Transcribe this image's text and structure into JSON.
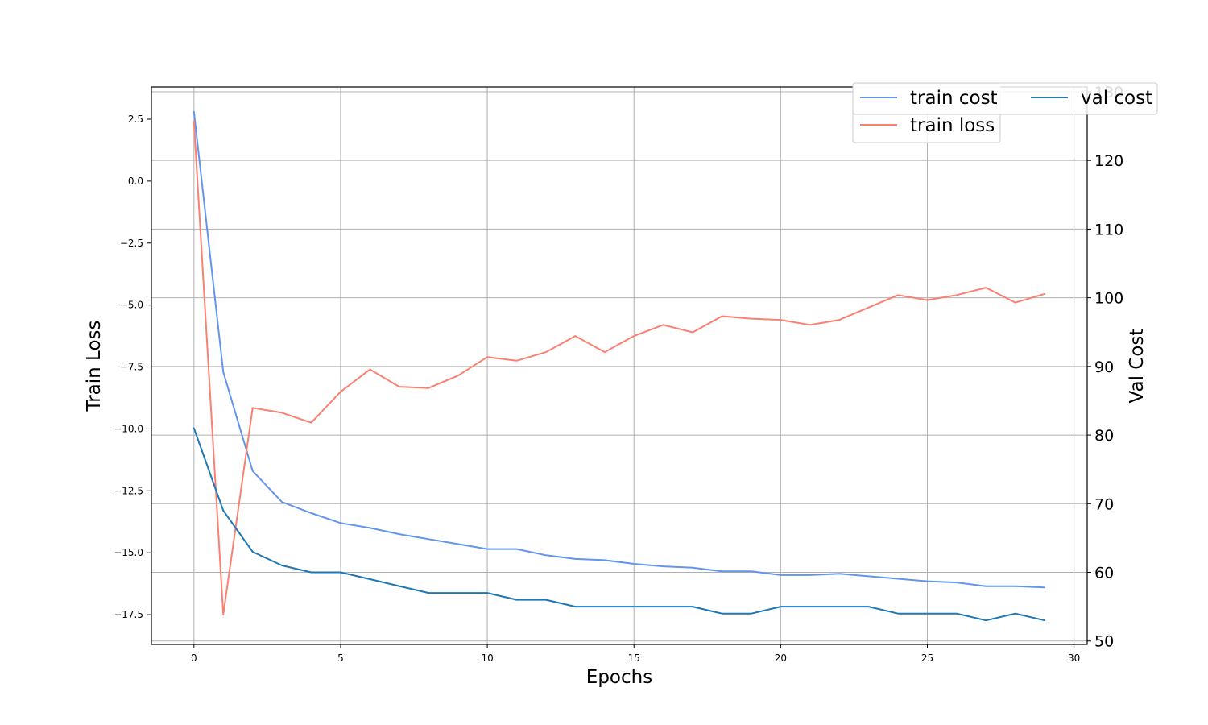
{
  "chart_data": {
    "type": "line",
    "xlabel": "Epochs",
    "ylabel_left": "Train Loss",
    "ylabel_right": "Val Cost",
    "xlim": [
      -1.45,
      30.45
    ],
    "ylim_left": [
      -18.7,
      3.8
    ],
    "ylim_right": [
      49.5,
      130.7
    ],
    "x_ticks": [
      "0",
      "5",
      "10",
      "15",
      "20",
      "25",
      "30"
    ],
    "y_ticks_left": [
      "2.5",
      "0.0",
      "−2.5",
      "−5.0",
      "−7.5",
      "−10.0",
      "−12.5",
      "−15.0",
      "−17.5"
    ],
    "y_ticks_right": [
      "130",
      "120",
      "110",
      "100",
      "90",
      "80",
      "70",
      "60",
      "50"
    ],
    "grid": true,
    "legend_position": "top-right",
    "x": [
      0,
      1,
      2,
      3,
      4,
      5,
      6,
      7,
      8,
      9,
      10,
      11,
      12,
      13,
      14,
      15,
      16,
      17,
      18,
      19,
      20,
      21,
      22,
      23,
      24,
      25,
      26,
      27,
      28,
      29
    ],
    "series": [
      {
        "name": "train cost",
        "axis": "left",
        "color": "#6495ED",
        "values": [
          2.8,
          -7.7,
          -11.7,
          -12.95,
          -13.4,
          -13.8,
          -14.0,
          -14.25,
          -14.45,
          -14.65,
          -14.85,
          -14.85,
          -15.1,
          -15.25,
          -15.3,
          -15.45,
          -15.55,
          -15.6,
          -15.75,
          -15.75,
          -15.9,
          -15.9,
          -15.85,
          -15.95,
          -16.05,
          -16.15,
          -16.2,
          -16.35,
          -16.35,
          -16.4
        ]
      },
      {
        "name": "train loss",
        "axis": "left",
        "color": "#FA8072",
        "values": [
          2.4,
          -17.5,
          -9.15,
          -9.35,
          -9.75,
          -8.5,
          -7.6,
          -8.3,
          -8.35,
          -7.85,
          -7.1,
          -7.25,
          -6.9,
          -6.25,
          -6.9,
          -6.25,
          -5.8,
          -6.1,
          -5.45,
          -5.55,
          -5.6,
          -5.8,
          -5.6,
          -5.1,
          -4.6,
          -4.8,
          -4.6,
          -4.3,
          -4.9,
          -4.55
        ]
      },
      {
        "name": "val cost",
        "axis": "right",
        "color": "#1F77B4",
        "values": [
          81,
          69,
          63,
          61,
          60,
          60,
          59,
          58,
          57,
          57,
          57,
          56,
          56,
          55,
          55,
          55,
          55,
          55,
          54,
          54,
          55,
          55,
          55,
          55,
          54,
          54,
          54,
          53,
          54,
          53
        ]
      }
    ]
  }
}
